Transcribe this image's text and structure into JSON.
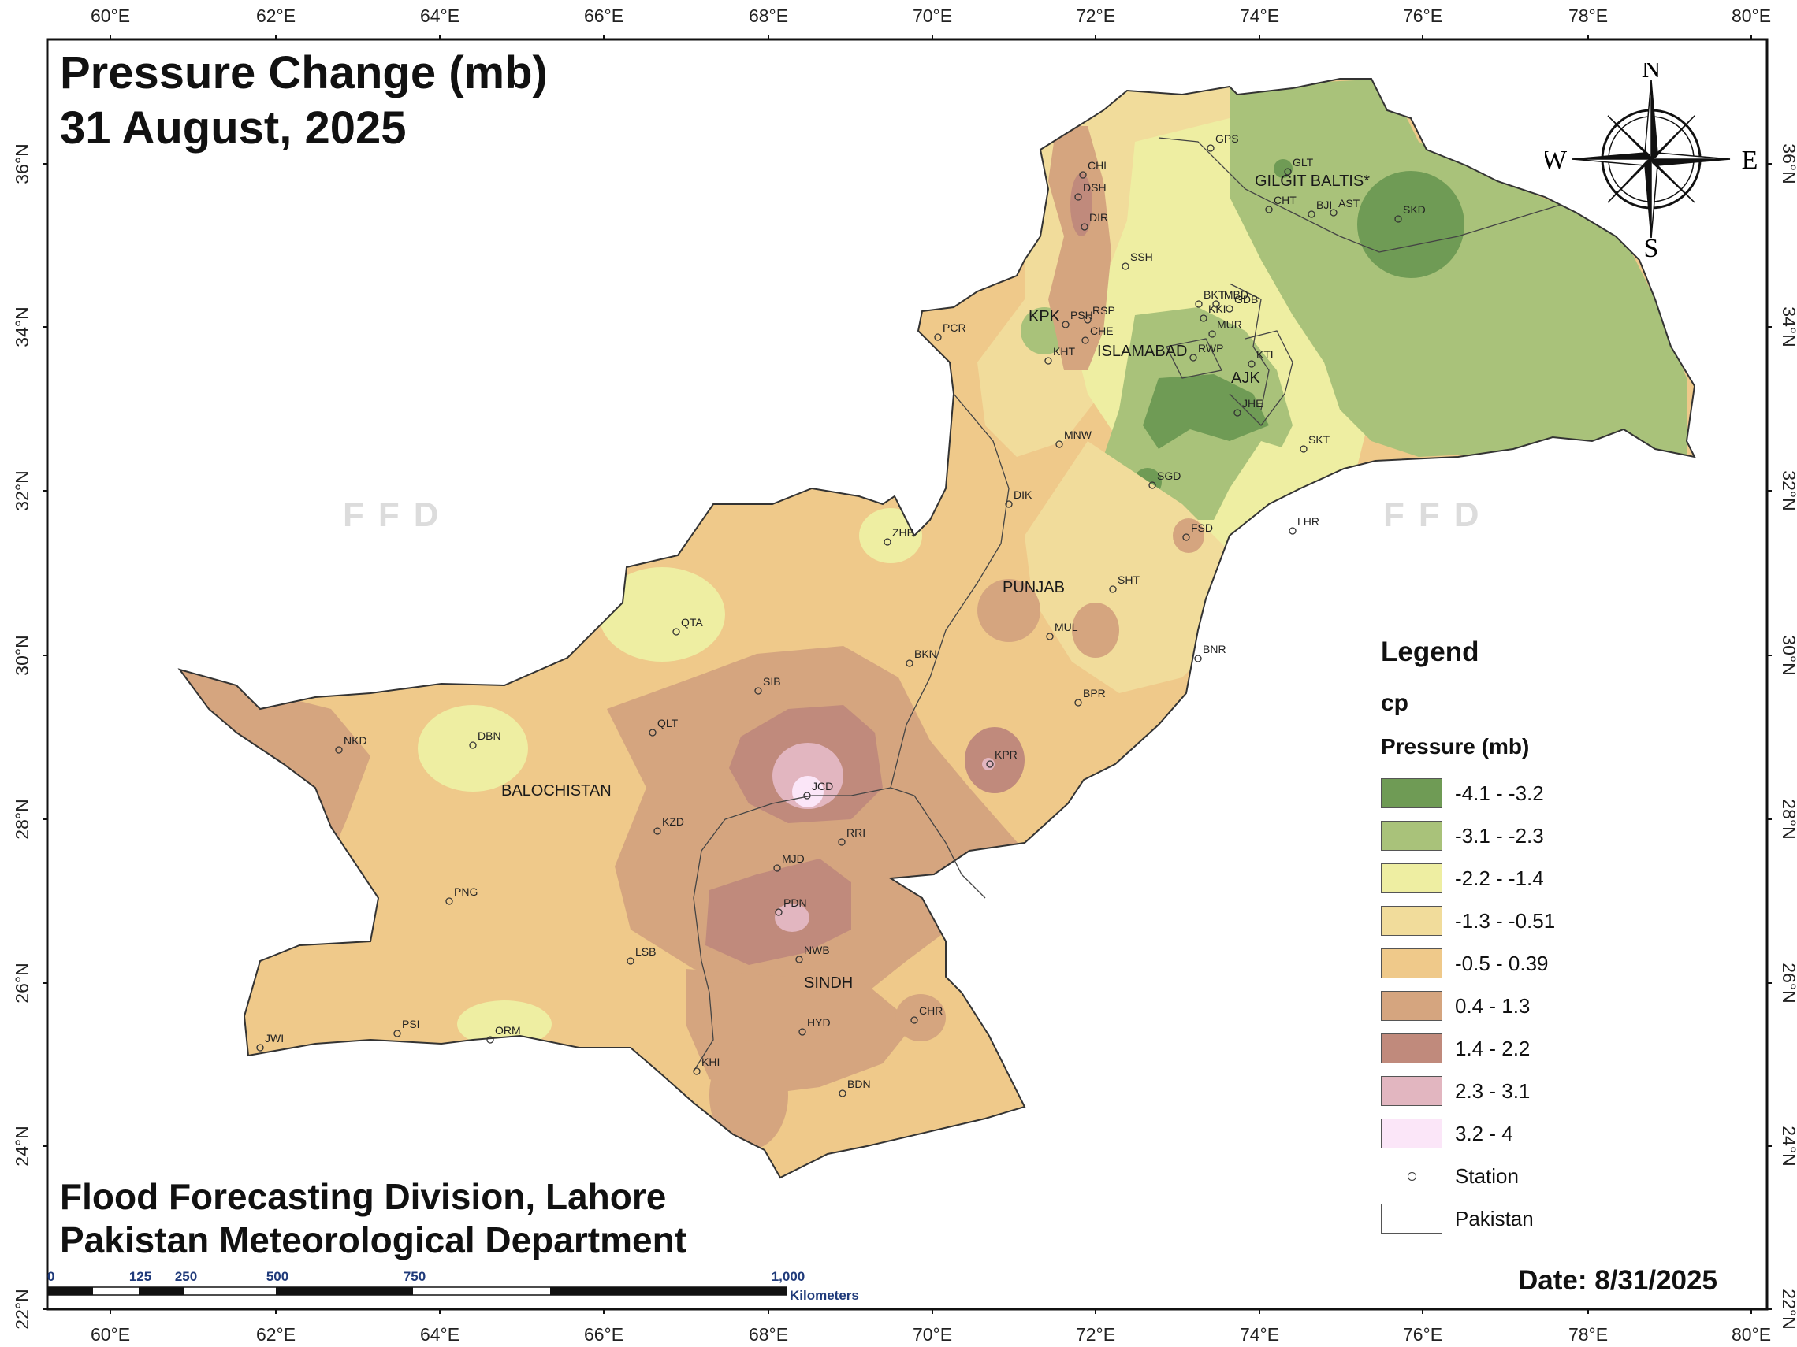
{
  "title": {
    "line1": "Pressure Change (mb)",
    "line2": "31 August, 2025"
  },
  "credit": {
    "line1": "Flood Forecasting Division, Lahore",
    "line2": "Pakistan Meteorological Department"
  },
  "date_label": "Date: 8/31/2025",
  "watermark": "FFD",
  "longitude_ticks": [
    "60°E",
    "62°E",
    "64°E",
    "66°E",
    "68°E",
    "70°E",
    "72°E",
    "74°E",
    "76°E",
    "78°E",
    "80°E"
  ],
  "latitude_ticks": [
    "36°N",
    "34°N",
    "32°N",
    "30°N",
    "28°N",
    "26°N",
    "24°N",
    "22°N"
  ],
  "legend": {
    "heading": "Legend",
    "layer": "cp",
    "field": "Pressure (mb)",
    "classes": [
      {
        "label": "-4.1 - -3.2",
        "color": "#6f9b55"
      },
      {
        "label": "-3.1 - -2.3",
        "color": "#a9c27a"
      },
      {
        "label": "-2.2 - -1.4",
        "color": "#eeeea2"
      },
      {
        "label": "-1.3 - -0.51",
        "color": "#f1dc9b"
      },
      {
        "label": "-0.5 - 0.39",
        "color": "#efc98a"
      },
      {
        "label": "0.4 - 1.3",
        "color": "#d5a57f"
      },
      {
        "label": "1.4 - 2.2",
        "color": "#c08a7c"
      },
      {
        "label": "2.3 - 3.1",
        "color": "#e2b6c0"
      },
      {
        "label": "3.2 - 4",
        "color": "#fbe6f8"
      }
    ],
    "station_label": "Station",
    "pakistan_label": "Pakistan"
  },
  "compass": {
    "n": "N",
    "s": "S",
    "e": "E",
    "w": "W"
  },
  "scale": {
    "ticks": [
      "0",
      "125",
      "250",
      "500",
      "750",
      "1,000"
    ],
    "unit": "Kilometers"
  },
  "regions": [
    "GILGIT BALTIS*",
    "KPK",
    "ISLAMABAD",
    "AJK",
    "PUNJAB",
    "BALOCHISTAN",
    "SINDH"
  ],
  "stations": [
    "CHL",
    "DSH",
    "DIR",
    "GPS",
    "GLT",
    "CHT",
    "BJI",
    "AST",
    "SKD",
    "SSH",
    "BKT",
    "IMBD",
    "KKI",
    "GDB",
    "MUR",
    "PSH",
    "RSP",
    "CHE",
    "KHT",
    "RWP",
    "KTL",
    "JHE",
    "PCR",
    "MNW",
    "SKT",
    "SGD",
    "DIK",
    "FSD",
    "LHR",
    "ZHB",
    "SHT",
    "QTA",
    "MUL",
    "BKN",
    "BNR",
    "SIB",
    "BPR",
    "QLT",
    "KPR",
    "NKD",
    "DBN",
    "JCD",
    "KZD",
    "RRI",
    "MJD",
    "PNG",
    "PDN",
    "LSB",
    "NWB",
    "CHR",
    "HYD",
    "PSI",
    "JWI",
    "ORM",
    "KHI",
    "BDN"
  ]
}
